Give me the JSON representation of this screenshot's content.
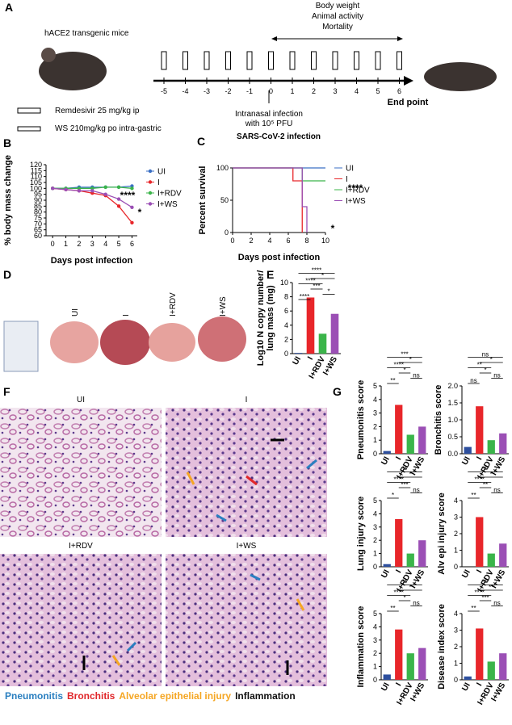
{
  "panel_labels": [
    "A",
    "B",
    "C",
    "D",
    "E",
    "F",
    "G"
  ],
  "timeline": {
    "top_labels": [
      "Body weight",
      "Animal activity",
      "Mortality"
    ],
    "mouse_label": "hACE2 transgenic mice",
    "days": [
      -5,
      -4,
      -3,
      -2,
      -1,
      0,
      1,
      2,
      3,
      4,
      5,
      6
    ],
    "end_label": "End point",
    "infection_lines": [
      "Intranasal infection",
      "with 10⁵ PFU"
    ],
    "infection_title": "SARS-CoV-2 infection",
    "treatments": [
      "Remdesivir 25 mg/kg ip",
      "WS 210mg/kg po intra-gastric"
    ]
  },
  "lung_photos": {
    "labels": [
      "UI",
      "I",
      "I+RDV",
      "I+WS"
    ]
  },
  "histology": {
    "labels": [
      "UI",
      "I",
      "I+RDV",
      "I+WS"
    ],
    "legend": [
      {
        "name": "Pneumonitis",
        "color": "#2a7fc0"
      },
      {
        "name": "Bronchitis",
        "color": "#e0262a"
      },
      {
        "name": "Alveolar epithelial injury",
        "color": "#f5a623"
      },
      {
        "name": "Inflammation",
        "color": "#111111"
      }
    ]
  },
  "chart_data": [
    {
      "type": "line",
      "xlabel": "Days post infection",
      "ylabel": "% body mass change",
      "x": [
        0,
        1,
        2,
        3,
        4,
        5,
        6
      ],
      "xlim": [
        -0.5,
        6.4
      ],
      "xticks": [
        0,
        1,
        2,
        3,
        4,
        5,
        6
      ],
      "ylim": [
        60,
        120
      ],
      "yticks": [
        60,
        65,
        70,
        75,
        80,
        85,
        90,
        95,
        100,
        105,
        110,
        115,
        120
      ],
      "markers": true,
      "series": [
        {
          "name": "UI",
          "color": "#3a6fc4",
          "values": [
            100,
            100,
            101,
            101,
            101,
            101,
            102
          ]
        },
        {
          "name": "I",
          "color": "#e8262a",
          "values": [
            100,
            99,
            98,
            96,
            94,
            85,
            71
          ]
        },
        {
          "name": "I+RDV",
          "color": "#3bb54a",
          "values": [
            100,
            100,
            100,
            100,
            101,
            101,
            100
          ]
        },
        {
          "name": "I+WS",
          "color": "#9b4fb5",
          "values": [
            100,
            99,
            98,
            98,
            95,
            91,
            84
          ]
        }
      ],
      "annotations": [
        "****",
        "*"
      ]
    },
    {
      "type": "line",
      "xlabel": "Days post infection",
      "ylabel": "Percent survival",
      "xlim": [
        0,
        10
      ],
      "xticks": [
        0,
        2,
        4,
        6,
        8,
        10
      ],
      "ylim": [
        0,
        100
      ],
      "yticks": [
        0,
        50,
        100
      ],
      "markers": false,
      "series": [
        {
          "name": "UI",
          "color": "#3a6fc4",
          "x": [
            0,
            10
          ],
          "values": [
            100,
            100
          ]
        },
        {
          "name": "I",
          "color": "#e8262a",
          "x": [
            0,
            6.5,
            6.5,
            7.5,
            7.5
          ],
          "values": [
            100,
            100,
            80,
            80,
            0
          ]
        },
        {
          "name": "I+RDV",
          "color": "#3bb54a",
          "x": [
            0,
            7.5,
            7.5,
            10
          ],
          "values": [
            100,
            100,
            80,
            80
          ]
        },
        {
          "name": "I+WS",
          "color": "#9b4fb5",
          "x": [
            0,
            7.5,
            7.5,
            8,
            8
          ],
          "values": [
            100,
            100,
            40,
            40,
            0
          ]
        }
      ],
      "annotations": [
        "****",
        "*"
      ]
    },
    {
      "type": "bar",
      "ylabel": [
        "Log10 N copy number/",
        "lung mass (mg)"
      ],
      "categories": [
        "UI",
        "I",
        "I+RDV",
        "I+WS"
      ],
      "values": [
        0.1,
        7.9,
        2.8,
        5.6
      ],
      "colors": [
        "#2d4f9e",
        "#e8262a",
        "#3bb54a",
        "#9b4fb5"
      ],
      "ylim": [
        0,
        10
      ],
      "yticks": [
        0,
        2,
        4,
        6,
        8,
        10
      ],
      "significance": [
        "****",
        "*",
        "****",
        "***",
        "*",
        "****"
      ]
    },
    {
      "type": "bar",
      "ylabel": "Pneumonitis score",
      "categories": [
        "UI",
        "I",
        "I+RDV",
        "I+WS"
      ],
      "values": [
        0.2,
        3.6,
        1.4,
        2.0
      ],
      "colors": [
        "#2d4f9e",
        "#e8262a",
        "#3bb54a",
        "#9b4fb5"
      ],
      "ylim": [
        0,
        5
      ],
      "yticks": [
        0,
        1,
        2,
        3,
        4,
        5
      ],
      "significance": [
        "***",
        "*",
        "****",
        "*",
        "ns",
        "**"
      ]
    },
    {
      "type": "bar",
      "ylabel": "Bronchitis score",
      "categories": [
        "UI",
        "I",
        "I+RDV",
        "I+WS"
      ],
      "values": [
        0.2,
        1.4,
        0.4,
        0.6
      ],
      "colors": [
        "#2d4f9e",
        "#e8262a",
        "#3bb54a",
        "#9b4fb5"
      ],
      "ylim": [
        0,
        2
      ],
      "yticks": [
        {
          "value": 0,
          "label": "0.0"
        },
        0.5,
        {
          "value": 1,
          "label": "1.0"
        },
        1.5,
        {
          "value": 2,
          "label": "2.0"
        }
      ],
      "significance": [
        "ns",
        "*",
        "**",
        "*",
        "ns",
        "ns"
      ]
    },
    {
      "type": "bar",
      "ylabel": "Lung injury score",
      "categories": [
        "UI",
        "I",
        "I+RDV",
        "I+WS"
      ],
      "values": [
        0.2,
        3.6,
        1.0,
        2.0
      ],
      "colors": [
        "#2d4f9e",
        "#e8262a",
        "#3bb54a",
        "#9b4fb5"
      ],
      "ylim": [
        0,
        5
      ],
      "yticks": [
        0,
        1,
        2,
        3,
        4,
        5
      ],
      "significance": [
        "**",
        "*",
        "****",
        "***",
        "ns",
        "*"
      ]
    },
    {
      "type": "bar",
      "ylabel": "Alv epi injury score",
      "categories": [
        "UI",
        "I",
        "I+RDV",
        "I+WS"
      ],
      "values": [
        0,
        3.0,
        0.8,
        1.4
      ],
      "colors": [
        "#2d4f9e",
        "#e8262a",
        "#3bb54a",
        "#9b4fb5"
      ],
      "ylim": [
        0,
        4
      ],
      "yticks": [
        0,
        1,
        2,
        3,
        4
      ],
      "significance": [
        "***",
        "*",
        "****",
        "**",
        "ns",
        "**"
      ]
    },
    {
      "type": "bar",
      "ylabel": "Inflammation score",
      "categories": [
        "UI",
        "I",
        "I+RDV",
        "I+WS"
      ],
      "values": [
        0.4,
        3.8,
        2.0,
        2.4
      ],
      "colors": [
        "#2d4f9e",
        "#e8262a",
        "#3bb54a",
        "#9b4fb5"
      ],
      "ylim": [
        0,
        5
      ],
      "yticks": [
        0,
        1,
        2,
        3,
        4,
        5
      ],
      "significance": [
        "**",
        "*",
        "****",
        "*",
        "ns",
        "**"
      ]
    },
    {
      "type": "bar",
      "ylabel": "Disease index score",
      "categories": [
        "UI",
        "I",
        "I+RDV",
        "I+WS"
      ],
      "values": [
        0.2,
        3.1,
        1.1,
        1.6
      ],
      "colors": [
        "#2d4f9e",
        "#e8262a",
        "#3bb54a",
        "#9b4fb5"
      ],
      "ylim": [
        0,
        4
      ],
      "yticks": [
        0,
        1,
        2,
        3,
        4
      ],
      "significance": [
        "***",
        "**",
        "****",
        "***",
        "ns",
        "**"
      ]
    }
  ]
}
